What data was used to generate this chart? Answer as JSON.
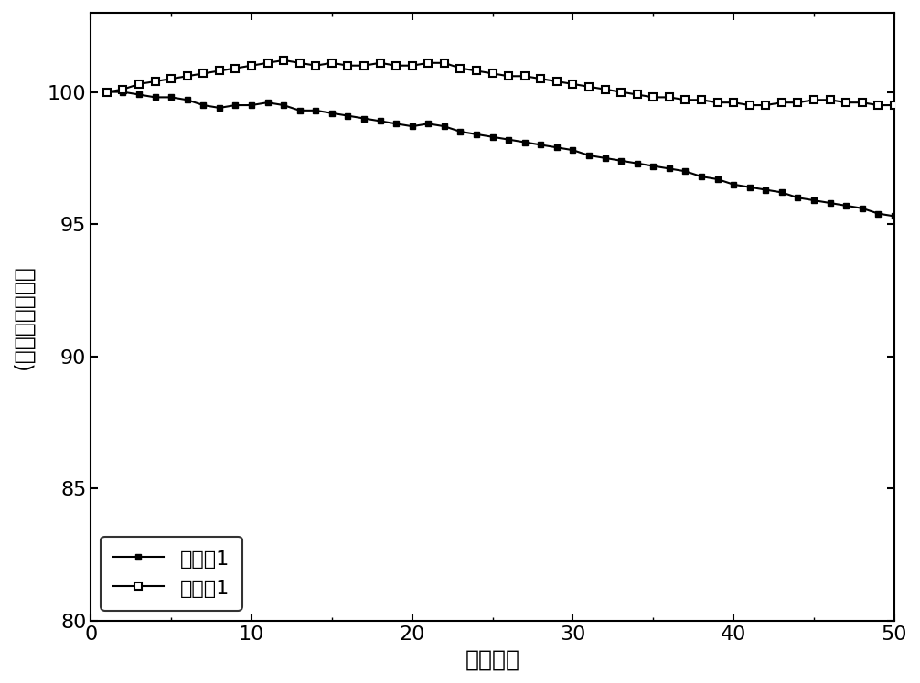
{
  "title": "",
  "xlabel": "循环次数",
  "ylabel": "(％）容量保持率",
  "xlim": [
    0,
    50
  ],
  "ylim": [
    80,
    103
  ],
  "yticks": [
    80,
    85,
    90,
    95,
    100
  ],
  "xticks": [
    0,
    10,
    20,
    30,
    40,
    50
  ],
  "series1_label": "对比例1",
  "series2_label": "实施例1",
  "series1_x": [
    1,
    2,
    3,
    4,
    5,
    6,
    7,
    8,
    9,
    10,
    11,
    12,
    13,
    14,
    15,
    16,
    17,
    18,
    19,
    20,
    21,
    22,
    23,
    24,
    25,
    26,
    27,
    28,
    29,
    30,
    31,
    32,
    33,
    34,
    35,
    36,
    37,
    38,
    39,
    40,
    41,
    42,
    43,
    44,
    45,
    46,
    47,
    48,
    49,
    50
  ],
  "series1_y": [
    100.0,
    100.0,
    99.9,
    99.8,
    99.8,
    99.7,
    99.5,
    99.4,
    99.5,
    99.5,
    99.6,
    99.5,
    99.3,
    99.3,
    99.2,
    99.1,
    99.0,
    98.9,
    98.8,
    98.7,
    98.8,
    98.7,
    98.5,
    98.4,
    98.3,
    98.2,
    98.1,
    98.0,
    97.9,
    97.8,
    97.6,
    97.5,
    97.4,
    97.3,
    97.2,
    97.1,
    97.0,
    96.8,
    96.7,
    96.5,
    96.4,
    96.3,
    96.2,
    96.0,
    95.9,
    95.8,
    95.7,
    95.6,
    95.4,
    95.3
  ],
  "series2_x": [
    1,
    2,
    3,
    4,
    5,
    6,
    7,
    8,
    9,
    10,
    11,
    12,
    13,
    14,
    15,
    16,
    17,
    18,
    19,
    20,
    21,
    22,
    23,
    24,
    25,
    26,
    27,
    28,
    29,
    30,
    31,
    32,
    33,
    34,
    35,
    36,
    37,
    38,
    39,
    40,
    41,
    42,
    43,
    44,
    45,
    46,
    47,
    48,
    49,
    50
  ],
  "series2_y": [
    100.0,
    100.1,
    100.3,
    100.4,
    100.5,
    100.6,
    100.7,
    100.8,
    100.9,
    101.0,
    101.1,
    101.2,
    101.1,
    101.0,
    101.1,
    101.0,
    101.0,
    101.1,
    101.0,
    101.0,
    101.1,
    101.1,
    100.9,
    100.8,
    100.7,
    100.6,
    100.6,
    100.5,
    100.4,
    100.3,
    100.2,
    100.1,
    100.0,
    99.9,
    99.8,
    99.8,
    99.7,
    99.7,
    99.6,
    99.6,
    99.5,
    99.5,
    99.6,
    99.6,
    99.7,
    99.7,
    99.6,
    99.6,
    99.5,
    99.5
  ],
  "line_color": "#000000",
  "figsize": [
    10.06,
    7.47
  ],
  "dpi": 100,
  "marker_size1": 5,
  "marker_size2": 6,
  "linewidth": 1.5
}
